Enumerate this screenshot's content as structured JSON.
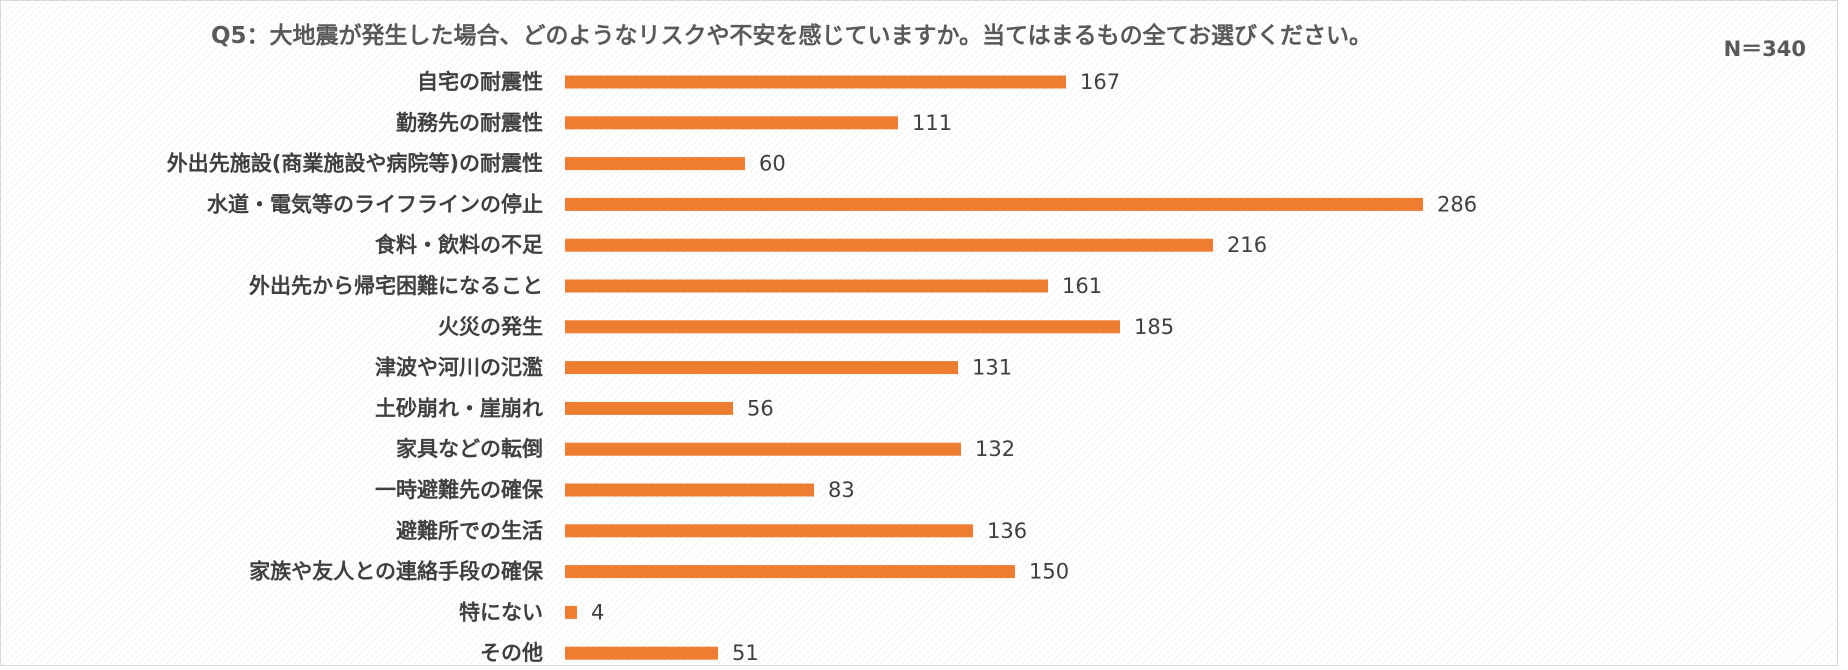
{
  "chart_data": {
    "type": "bar",
    "orientation": "horizontal",
    "title": "Q5：大地震が発生した場合、どのようなリスクや不安を感じていますか。当てはまるもの全てお選びください。",
    "sample_size_label": "N＝340",
    "categories": [
      "自宅の耐震性",
      "勤務先の耐震性",
      "外出先施設(商業施設や病院等)の耐震性",
      "水道・電気等のライフラインの停止",
      "食料・飲料の不足",
      "外出先から帰宅困難になること",
      "火災の発生",
      "津波や河川の氾濫",
      "土砂崩れ・崖崩れ",
      "家具などの転倒",
      "一時避難先の確保",
      "避難所での生活",
      "家族や友人との連絡手段の確保",
      "特にない",
      "その他"
    ],
    "values": [
      167,
      111,
      60,
      286,
      216,
      161,
      185,
      131,
      56,
      132,
      83,
      136,
      150,
      4,
      51
    ],
    "xlim": [
      0,
      340
    ],
    "xlabel": "",
    "ylabel": "",
    "grid": false,
    "legend": "none",
    "bar_color": "#ED7D31",
    "label_color": "#404040",
    "title_color": "#595959"
  }
}
